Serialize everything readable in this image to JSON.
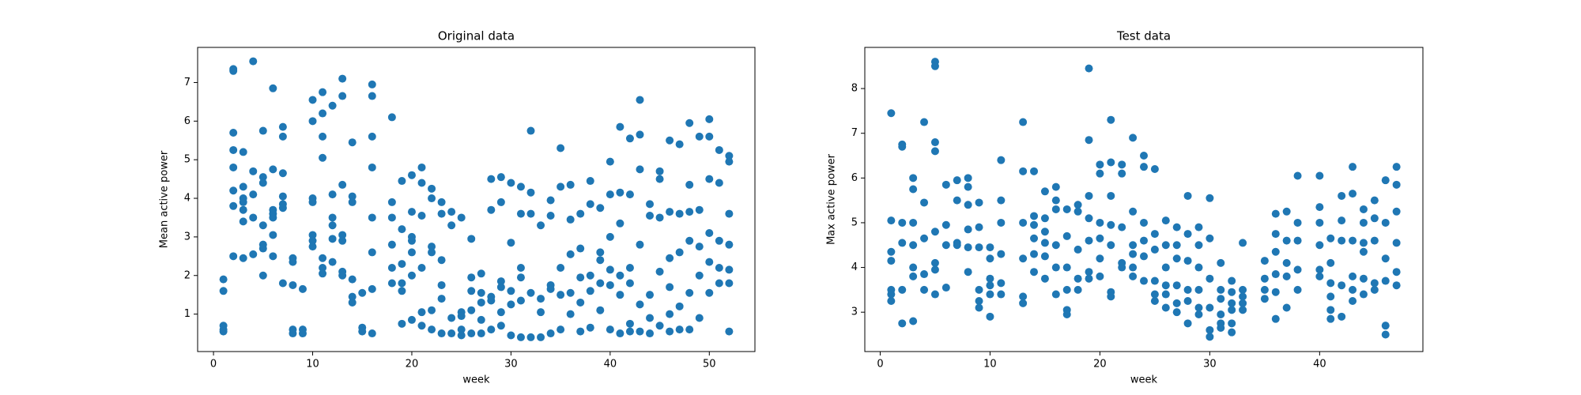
{
  "chart_data": [
    {
      "type": "scatter",
      "title": "Original data",
      "x_label": "week",
      "y_label": "Mean active power",
      "color": "#1f77b4",
      "xlim": [
        -1.6,
        54.6
      ],
      "ylim": [
        0.03,
        7.91
      ],
      "xticks": [
        0,
        10,
        20,
        30,
        40,
        50
      ],
      "yticks": [
        1,
        2,
        3,
        4,
        5,
        6,
        7
      ],
      "grid": false,
      "x": [
        1,
        1,
        1,
        1,
        1,
        2,
        2,
        2,
        2,
        2,
        2,
        2,
        2,
        3,
        3,
        3,
        3,
        3,
        3,
        3,
        4,
        4,
        4,
        4,
        4,
        5,
        5,
        5,
        5,
        5,
        5,
        5,
        6,
        6,
        6,
        6,
        6,
        6,
        6,
        7,
        7,
        7,
        7,
        7,
        7,
        7,
        8,
        8,
        8,
        8,
        8,
        9,
        9,
        9,
        10,
        10,
        10,
        10,
        10,
        10,
        10,
        11,
        11,
        11,
        11,
        11,
        11,
        11,
        12,
        12,
        12,
        12,
        12,
        12,
        13,
        13,
        13,
        13,
        13,
        13,
        13,
        14,
        14,
        14,
        14,
        14,
        14,
        15,
        15,
        15,
        16,
        16,
        16,
        16,
        16,
        16,
        16,
        16,
        18,
        18,
        18,
        18,
        18,
        18,
        19,
        19,
        19,
        19,
        19,
        19,
        20,
        20,
        20,
        20,
        20,
        20,
        20,
        21,
        21,
        21,
        21,
        21,
        21,
        22,
        22,
        22,
        22,
        22,
        22,
        23,
        23,
        23,
        23,
        23,
        23,
        24,
        24,
        24,
        24,
        25,
        25,
        25,
        25,
        25,
        26,
        26,
        26,
        26,
        26,
        27,
        27,
        27,
        27,
        27,
        28,
        28,
        28,
        28,
        28,
        29,
        29,
        29,
        29,
        29,
        29,
        30,
        30,
        30,
        30,
        30,
        31,
        31,
        31,
        31,
        31,
        31,
        32,
        32,
        32,
        32,
        32,
        33,
        33,
        33,
        33,
        34,
        34,
        34,
        34,
        34,
        35,
        35,
        35,
        35,
        35,
        36,
        36,
        36,
        36,
        36,
        37,
        37,
        37,
        37,
        37,
        38,
        38,
        38,
        38,
        38,
        39,
        39,
        39,
        39,
        39,
        40,
        40,
        40,
        40,
        40,
        40,
        41,
        41,
        41,
        41,
        41,
        41,
        42,
        42,
        42,
        42,
        42,
        42,
        43,
        43,
        43,
        43,
        43,
        43,
        44,
        44,
        44,
        44,
        44,
        45,
        45,
        45,
        45,
        45,
        46,
        46,
        46,
        46,
        46,
        46,
        47,
        47,
        47,
        47,
        47,
        48,
        48,
        48,
        48,
        48,
        48,
        49,
        49,
        49,
        49,
        49,
        50,
        50,
        50,
        50,
        50,
        50,
        51,
        51,
        51,
        51,
        51,
        52,
        52,
        52,
        52,
        52,
        52,
        52
      ],
      "values": [
        1.9,
        1.6,
        0.7,
        0.6,
        0.55,
        7.35,
        7.3,
        5.7,
        5.25,
        4.8,
        4.2,
        3.8,
        2.5,
        5.2,
        4.3,
        4.0,
        3.9,
        3.7,
        3.4,
        2.45,
        7.55,
        4.7,
        4.1,
        3.5,
        2.55,
        5.75,
        4.55,
        4.4,
        3.3,
        2.8,
        2.7,
        2.0,
        6.85,
        4.75,
        3.7,
        3.6,
        3.5,
        3.05,
        2.5,
        5.85,
        5.6,
        4.65,
        4.05,
        3.85,
        3.75,
        1.8,
        2.45,
        2.35,
        1.75,
        0.6,
        0.5,
        1.65,
        0.6,
        0.5,
        6.55,
        6.0,
        4.0,
        3.9,
        3.05,
        2.9,
        2.75,
        6.75,
        6.2,
        5.6,
        5.05,
        2.45,
        2.2,
        2.05,
        6.4,
        4.1,
        3.5,
        3.3,
        2.95,
        2.35,
        7.1,
        6.65,
        4.35,
        3.05,
        2.9,
        2.1,
        2.0,
        5.45,
        4.05,
        3.9,
        1.9,
        1.45,
        1.3,
        1.55,
        0.65,
        0.55,
        6.95,
        6.65,
        5.6,
        4.8,
        3.5,
        2.6,
        1.65,
        0.5,
        6.1,
        3.9,
        3.5,
        2.8,
        2.2,
        1.8,
        4.45,
        3.2,
        2.3,
        1.8,
        1.6,
        0.75,
        4.6,
        3.65,
        3.0,
        2.9,
        2.6,
        2.0,
        0.85,
        4.8,
        4.4,
        3.55,
        2.2,
        1.05,
        0.7,
        4.25,
        4.0,
        2.75,
        2.6,
        1.1,
        0.6,
        3.9,
        3.6,
        2.4,
        1.75,
        1.4,
        0.5,
        3.65,
        3.3,
        0.9,
        0.5,
        3.5,
        1.05,
        0.95,
        0.6,
        0.45,
        2.95,
        1.95,
        1.6,
        1.1,
        0.5,
        2.05,
        1.55,
        1.3,
        0.85,
        0.5,
        4.5,
        3.7,
        1.45,
        1.35,
        0.6,
        4.55,
        3.9,
        1.85,
        1.7,
        1.05,
        0.7,
        4.4,
        2.85,
        1.6,
        1.25,
        0.45,
        4.3,
        3.6,
        2.2,
        1.95,
        1.35,
        0.4,
        5.75,
        4.15,
        3.6,
        1.55,
        0.4,
        3.3,
        1.4,
        1.05,
        0.4,
        3.95,
        3.55,
        1.75,
        1.65,
        0.5,
        5.3,
        4.3,
        2.2,
        1.5,
        0.6,
        4.35,
        3.45,
        2.55,
        1.55,
        1.0,
        3.6,
        2.7,
        1.95,
        1.3,
        0.55,
        4.45,
        3.85,
        2.0,
        1.6,
        0.65,
        3.75,
        2.6,
        2.4,
        1.8,
        1.1,
        4.95,
        4.1,
        3.0,
        2.15,
        1.75,
        0.6,
        5.85,
        4.15,
        3.35,
        2.0,
        1.5,
        0.5,
        5.55,
        4.1,
        2.2,
        1.8,
        0.75,
        0.55,
        6.55,
        5.65,
        4.75,
        2.8,
        1.25,
        0.55,
        3.85,
        3.55,
        1.5,
        0.9,
        0.5,
        4.7,
        4.5,
        3.5,
        2.1,
        0.7,
        5.5,
        3.65,
        2.45,
        1.7,
        1.0,
        0.55,
        5.4,
        3.6,
        2.6,
        1.2,
        0.6,
        5.95,
        4.35,
        3.65,
        2.9,
        1.55,
        0.6,
        5.6,
        3.7,
        2.75,
        2.0,
        0.9,
        6.05,
        5.6,
        4.5,
        3.1,
        2.35,
        1.55,
        5.25,
        4.4,
        2.9,
        2.2,
        1.8,
        5.1,
        4.95,
        3.6,
        2.8,
        2.15,
        1.8,
        0.55
      ]
    },
    {
      "type": "scatter",
      "title": "Test data",
      "x_label": "week",
      "y_label": "Max active power",
      "color": "#1f77b4",
      "xlim": [
        -1.4,
        49.4
      ],
      "ylim": [
        2.12,
        8.92
      ],
      "xticks": [
        0,
        10,
        20,
        30,
        40
      ],
      "yticks": [
        3,
        4,
        5,
        6,
        7,
        8
      ],
      "grid": false,
      "x": [
        1,
        1,
        1,
        1,
        1,
        1,
        1,
        2,
        2,
        2,
        2,
        2,
        2,
        3,
        3,
        3,
        3,
        3,
        3,
        3,
        4,
        4,
        4,
        4,
        4,
        5,
        5,
        5,
        5,
        5,
        5,
        5,
        5,
        6,
        6,
        6,
        6,
        7,
        7,
        7,
        7,
        8,
        8,
        8,
        8,
        8,
        8,
        9,
        9,
        9,
        9,
        9,
        9,
        10,
        10,
        10,
        10,
        10,
        10,
        11,
        11,
        11,
        11,
        11,
        11,
        13,
        13,
        13,
        13,
        13,
        13,
        14,
        14,
        14,
        14,
        14,
        14,
        15,
        15,
        15,
        15,
        15,
        15,
        16,
        16,
        16,
        16,
        16,
        16,
        17,
        17,
        17,
        17,
        17,
        17,
        18,
        18,
        18,
        18,
        18,
        19,
        19,
        19,
        19,
        19,
        19,
        19,
        20,
        20,
        20,
        20,
        20,
        20,
        21,
        21,
        21,
        21,
        21,
        21,
        21,
        22,
        22,
        22,
        22,
        22,
        23,
        23,
        23,
        23,
        23,
        23,
        24,
        24,
        24,
        24,
        24,
        24,
        25,
        25,
        25,
        25,
        25,
        25,
        26,
        26,
        26,
        26,
        26,
        26,
        27,
        27,
        27,
        27,
        27,
        27,
        28,
        28,
        28,
        28,
        28,
        28,
        29,
        29,
        29,
        29,
        29,
        29,
        30,
        30,
        30,
        30,
        30,
        30,
        31,
        31,
        31,
        31,
        31,
        31,
        32,
        32,
        32,
        32,
        32,
        32,
        33,
        33,
        33,
        33,
        33,
        35,
        35,
        35,
        35,
        36,
        36,
        36,
        36,
        36,
        36,
        37,
        37,
        37,
        37,
        37,
        38,
        38,
        38,
        38,
        38,
        40,
        40,
        40,
        40,
        40,
        40,
        41,
        41,
        41,
        41,
        41,
        41,
        42,
        42,
        42,
        42,
        42,
        43,
        43,
        43,
        43,
        43,
        43,
        44,
        44,
        44,
        44,
        44,
        44,
        45,
        45,
        45,
        45,
        45,
        46,
        46,
        46,
        46,
        46,
        46,
        47,
        47,
        47,
        47,
        47,
        47
      ],
      "values": [
        7.45,
        5.05,
        4.35,
        4.15,
        3.5,
        3.4,
        3.25,
        6.75,
        6.7,
        5.0,
        4.55,
        3.5,
        2.75,
        6.0,
        5.75,
        5.0,
        4.5,
        4.0,
        3.8,
        2.8,
        7.25,
        5.45,
        4.65,
        3.85,
        3.5,
        8.6,
        8.5,
        6.8,
        6.6,
        4.8,
        4.1,
        3.95,
        3.4,
        5.85,
        4.95,
        4.5,
        3.55,
        5.95,
        5.5,
        4.55,
        4.5,
        6.0,
        5.8,
        5.4,
        4.85,
        4.45,
        3.9,
        5.45,
        4.9,
        4.45,
        3.5,
        3.25,
        3.1,
        4.45,
        4.2,
        3.75,
        3.6,
        3.4,
        2.9,
        6.4,
        5.5,
        5.0,
        4.3,
        3.65,
        3.4,
        7.25,
        6.15,
        5.0,
        4.2,
        3.35,
        3.2,
        6.15,
        5.15,
        4.95,
        4.65,
        4.3,
        3.9,
        5.7,
        5.1,
        4.8,
        4.55,
        4.25,
        3.75,
        5.8,
        5.5,
        5.3,
        4.5,
        4.0,
        3.4,
        5.3,
        4.7,
        4.0,
        3.5,
        3.05,
        2.95,
        5.4,
        5.25,
        4.4,
        3.75,
        3.5,
        8.45,
        6.85,
        5.6,
        5.1,
        4.6,
        3.9,
        3.75,
        6.3,
        6.1,
        5.0,
        4.65,
        4.2,
        3.8,
        7.3,
        6.35,
        5.6,
        4.95,
        4.5,
        3.45,
        3.35,
        6.3,
        6.1,
        4.9,
        4.1,
        4.0,
        6.9,
        5.25,
        4.5,
        4.3,
        4.0,
        3.8,
        6.5,
        6.25,
        5.0,
        4.6,
        4.25,
        3.7,
        6.2,
        4.75,
        4.4,
        3.7,
        3.4,
        3.25,
        5.05,
        4.5,
        4.0,
        3.6,
        3.4,
        3.1,
        4.9,
        4.5,
        4.2,
        3.6,
        3.2,
        3.0,
        5.6,
        4.75,
        4.15,
        3.5,
        3.25,
        2.75,
        4.9,
        4.5,
        4.0,
        3.5,
        3.1,
        2.95,
        5.55,
        4.65,
        3.75,
        3.1,
        2.6,
        2.45,
        4.1,
        3.5,
        3.3,
        2.95,
        2.75,
        2.65,
        3.7,
        3.45,
        3.2,
        3.05,
        2.75,
        2.55,
        4.55,
        3.5,
        3.35,
        3.2,
        3.05,
        4.15,
        3.75,
        3.5,
        3.3,
        5.2,
        4.75,
        4.35,
        3.85,
        3.45,
        2.85,
        5.25,
        4.6,
        4.1,
        3.8,
        3.1,
        6.05,
        5.0,
        4.6,
        3.95,
        3.5,
        6.05,
        5.35,
        5.0,
        4.5,
        3.95,
        3.8,
        4.65,
        4.1,
        3.65,
        3.35,
        3.05,
        2.85,
        5.6,
        5.05,
        4.6,
        3.6,
        2.9,
        6.25,
        5.65,
        4.6,
        3.8,
        3.5,
        3.25,
        5.3,
        5.0,
        4.55,
        4.35,
        3.75,
        3.4,
        5.5,
        5.1,
        4.6,
        3.65,
        3.5,
        5.95,
        5.0,
        4.2,
        3.7,
        2.7,
        2.5,
        6.25,
        5.85,
        5.25,
        4.55,
        3.9,
        3.6
      ]
    }
  ]
}
